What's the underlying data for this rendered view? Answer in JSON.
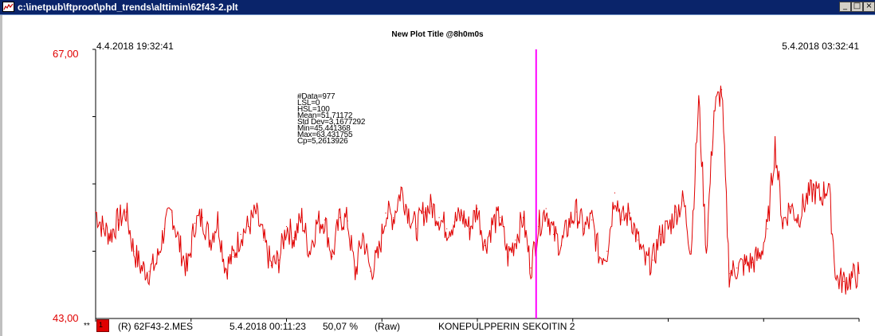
{
  "window": {
    "title": "c:\\inetpub\\ftproot\\phd_trends\\alttimin\\62f43-2.plt",
    "minimize_glyph": "_",
    "maximize_glyph": "□",
    "close_glyph": "×",
    "app_icon": "trend-plot-icon"
  },
  "plot": {
    "title": "New Plot Title  @8h0m0s",
    "start_time": "4.4.2018  19:32:41",
    "end_time": "5.4.2018  03:32:41",
    "y_max_label": "67,00",
    "y_min_label": "43,00",
    "cursor_color": "#ff00ff",
    "series_color": "#e00000"
  },
  "stats": [
    "#Data=977",
    "LSL=0",
    "HSL=100",
    "Mean=51,71172",
    "Std Dev=3,1677292",
    "Min=45,441368",
    "Max=63,431755",
    "Cp=5,2613926"
  ],
  "legend": {
    "prefix": "**",
    "swatch_label": "1",
    "tag_text": "(R) 62F43-2.MES",
    "cursor_time": "5.4.2018 00:11:23",
    "cursor_value": "50,07 %",
    "mode": "(Raw)",
    "description": "KONEPULPPERIN SEKOITIN 2"
  },
  "chart_data": {
    "type": "line",
    "ylim": [
      43,
      67
    ],
    "series": [
      {
        "name": "(R) 62F43-2.MES",
        "x_fraction": [
          0,
          0.01,
          0.02,
          0.03,
          0.04,
          0.05,
          0.06,
          0.07,
          0.08,
          0.09,
          0.1,
          0.11,
          0.12,
          0.13,
          0.14,
          0.15,
          0.16,
          0.17,
          0.18,
          0.19,
          0.2,
          0.21,
          0.22,
          0.23,
          0.24,
          0.25,
          0.26,
          0.27,
          0.28,
          0.29,
          0.3,
          0.31,
          0.32,
          0.33,
          0.34,
          0.35,
          0.36,
          0.37,
          0.38,
          0.39,
          0.4,
          0.41,
          0.42,
          0.43,
          0.44,
          0.45,
          0.46,
          0.47,
          0.48,
          0.49,
          0.5,
          0.51,
          0.52,
          0.53,
          0.54,
          0.55,
          0.56,
          0.57,
          0.58,
          0.59,
          0.6,
          0.61,
          0.62,
          0.63,
          0.64,
          0.65,
          0.66,
          0.67,
          0.68,
          0.69,
          0.7,
          0.71,
          0.72,
          0.73,
          0.74,
          0.75,
          0.76,
          0.77,
          0.78,
          0.79,
          0.8,
          0.81,
          0.82,
          0.83,
          0.84,
          0.85,
          0.86,
          0.87,
          0.88,
          0.89,
          0.9,
          0.91,
          0.92,
          0.93,
          0.94,
          0.95,
          0.96,
          0.97,
          0.98,
          0.99,
          1.0
        ],
        "values": [
          52.5,
          51.0,
          50.5,
          51.8,
          52.5,
          49.0,
          47.5,
          47.2,
          48.0,
          51.0,
          52.5,
          49.5,
          47.3,
          51.5,
          52.0,
          50.0,
          51.8,
          47.5,
          48.5,
          50.5,
          51.2,
          52.4,
          50.0,
          47.7,
          48.2,
          51.2,
          50.2,
          52.0,
          49.0,
          51.5,
          51.8,
          48.5,
          52.0,
          51.7,
          47.0,
          50.5,
          47.2,
          48.5,
          52.4,
          52.0,
          54.5,
          52.5,
          51.0,
          52.5,
          53.0,
          52.0,
          51.0,
          51.6,
          52.2,
          51.0,
          52.8,
          49.5,
          51.5,
          52.0,
          48.5,
          50.0,
          52.0,
          47.5,
          51.2,
          52.8,
          50.5,
          49.5,
          51.5,
          52.5,
          51.0,
          51.8,
          48.5,
          49.0,
          54.2,
          51.8,
          52.4,
          50.0,
          48.0,
          48.2,
          50.5,
          51.0,
          52.5,
          53.5,
          49.0,
          62.5,
          49.0,
          61.5,
          63.4,
          47.0,
          47.5,
          47.8,
          48.0,
          48.6,
          51.0,
          58.5,
          51.5,
          53.0,
          52.0,
          53.5,
          54.5,
          53.8,
          55.0,
          46.5,
          46.3,
          46.6,
          47.0
        ]
      }
    ],
    "cursor_x_fraction": 0.577,
    "cursor_value": 50.07
  }
}
